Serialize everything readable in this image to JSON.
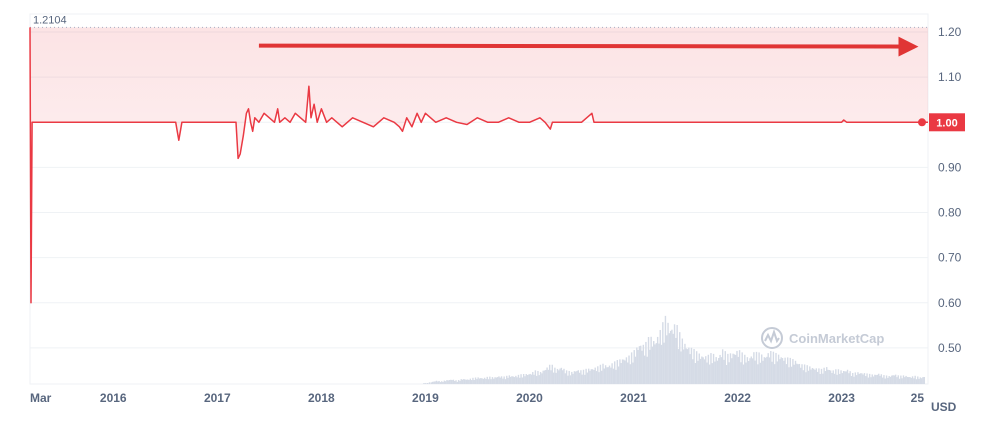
{
  "chart_data": {
    "type": "line",
    "y_ticks": [
      "1.20",
      "1.10",
      "1.00",
      "0.90",
      "0.80",
      "0.70",
      "0.60",
      "0.50"
    ],
    "ylim": [
      0.42,
      1.24
    ],
    "x_ticks": [
      "Mar",
      "2016",
      "2017",
      "2018",
      "2019",
      "2020",
      "2021",
      "2022",
      "2023",
      "25"
    ],
    "x_tick_years": [
      2015.2,
      2016.0,
      2017.0,
      2018.0,
      2019.0,
      2020.0,
      2021.0,
      2022.0,
      2023.0,
      2023.75
    ],
    "xlim": [
      2015.2,
      2023.83
    ],
    "unit": "USD",
    "max_label": "1.2104",
    "max_value": 1.2104,
    "current_label": "1.00",
    "current_value": 1.0,
    "watermark": "CoinMarketCap",
    "grid": true,
    "line_color": "#ea3943",
    "price_series": [
      [
        2015.2,
        1.2104
      ],
      [
        2015.21,
        0.6
      ],
      [
        2015.22,
        1.0
      ],
      [
        2015.5,
        1.0
      ],
      [
        2015.8,
        1.0
      ],
      [
        2016.0,
        1.0
      ],
      [
        2016.3,
        1.0
      ],
      [
        2016.6,
        1.0
      ],
      [
        2016.63,
        0.96
      ],
      [
        2016.66,
        1.0
      ],
      [
        2016.9,
        1.0
      ],
      [
        2017.1,
        1.0
      ],
      [
        2017.18,
        1.0
      ],
      [
        2017.2,
        0.92
      ],
      [
        2017.22,
        0.93
      ],
      [
        2017.25,
        0.97
      ],
      [
        2017.28,
        1.02
      ],
      [
        2017.3,
        1.03
      ],
      [
        2017.32,
        1.0
      ],
      [
        2017.34,
        0.98
      ],
      [
        2017.36,
        1.01
      ],
      [
        2017.4,
        1.0
      ],
      [
        2017.45,
        1.02
      ],
      [
        2017.5,
        1.01
      ],
      [
        2017.55,
        1.0
      ],
      [
        2017.58,
        1.03
      ],
      [
        2017.6,
        1.0
      ],
      [
        2017.65,
        1.01
      ],
      [
        2017.7,
        1.0
      ],
      [
        2017.75,
        1.02
      ],
      [
        2017.8,
        1.01
      ],
      [
        2017.85,
        1.0
      ],
      [
        2017.88,
        1.08
      ],
      [
        2017.9,
        1.01
      ],
      [
        2017.93,
        1.04
      ],
      [
        2017.96,
        1.0
      ],
      [
        2018.0,
        1.03
      ],
      [
        2018.05,
        1.0
      ],
      [
        2018.1,
        1.01
      ],
      [
        2018.2,
        0.99
      ],
      [
        2018.3,
        1.01
      ],
      [
        2018.4,
        1.0
      ],
      [
        2018.5,
        0.99
      ],
      [
        2018.6,
        1.01
      ],
      [
        2018.7,
        1.0
      ],
      [
        2018.75,
        0.99
      ],
      [
        2018.78,
        0.98
      ],
      [
        2018.82,
        1.01
      ],
      [
        2018.87,
        0.99
      ],
      [
        2018.92,
        1.02
      ],
      [
        2018.96,
        1.0
      ],
      [
        2019.0,
        1.02
      ],
      [
        2019.05,
        1.01
      ],
      [
        2019.1,
        1.0
      ],
      [
        2019.2,
        1.01
      ],
      [
        2019.3,
        1.0
      ],
      [
        2019.4,
        0.995
      ],
      [
        2019.5,
        1.01
      ],
      [
        2019.6,
        1.0
      ],
      [
        2019.7,
        1.0
      ],
      [
        2019.8,
        1.01
      ],
      [
        2019.9,
        1.0
      ],
      [
        2020.0,
        1.0
      ],
      [
        2020.1,
        1.01
      ],
      [
        2020.15,
        1.0
      ],
      [
        2020.2,
        0.985
      ],
      [
        2020.22,
        1.0
      ],
      [
        2020.3,
        1.0
      ],
      [
        2020.4,
        1.0
      ],
      [
        2020.5,
        1.0
      ],
      [
        2020.6,
        1.02
      ],
      [
        2020.62,
        1.0
      ],
      [
        2020.8,
        1.0
      ],
      [
        2021.0,
        1.0
      ],
      [
        2021.2,
        1.0
      ],
      [
        2021.5,
        1.0
      ],
      [
        2021.8,
        1.0
      ],
      [
        2022.0,
        1.0
      ],
      [
        2022.3,
        1.0
      ],
      [
        2022.6,
        1.0
      ],
      [
        2022.9,
        1.0
      ],
      [
        2023.0,
        1.0
      ],
      [
        2023.02,
        1.005
      ],
      [
        2023.05,
        1.0
      ],
      [
        2023.3,
        1.0
      ],
      [
        2023.6,
        1.0
      ],
      [
        2023.83,
        1.0
      ]
    ],
    "volume_series": [
      [
        2018.98,
        0.01
      ],
      [
        2019.05,
        0.03
      ],
      [
        2019.1,
        0.05
      ],
      [
        2019.15,
        0.04
      ],
      [
        2019.2,
        0.06
      ],
      [
        2019.25,
        0.07
      ],
      [
        2019.3,
        0.05
      ],
      [
        2019.35,
        0.08
      ],
      [
        2019.4,
        0.07
      ],
      [
        2019.45,
        0.09
      ],
      [
        2019.5,
        0.1
      ],
      [
        2019.55,
        0.09
      ],
      [
        2019.6,
        0.11
      ],
      [
        2019.65,
        0.1
      ],
      [
        2019.7,
        0.12
      ],
      [
        2019.75,
        0.11
      ],
      [
        2019.8,
        0.13
      ],
      [
        2019.85,
        0.12
      ],
      [
        2019.9,
        0.14
      ],
      [
        2019.95,
        0.15
      ],
      [
        2020.0,
        0.16
      ],
      [
        2020.05,
        0.2
      ],
      [
        2020.1,
        0.18
      ],
      [
        2020.15,
        0.24
      ],
      [
        2020.2,
        0.3
      ],
      [
        2020.25,
        0.22
      ],
      [
        2020.3,
        0.26
      ],
      [
        2020.35,
        0.2
      ],
      [
        2020.4,
        0.18
      ],
      [
        2020.45,
        0.22
      ],
      [
        2020.5,
        0.2
      ],
      [
        2020.55,
        0.23
      ],
      [
        2020.6,
        0.24
      ],
      [
        2020.65,
        0.26
      ],
      [
        2020.7,
        0.3
      ],
      [
        2020.75,
        0.28
      ],
      [
        2020.8,
        0.32
      ],
      [
        2020.85,
        0.36
      ],
      [
        2020.9,
        0.4
      ],
      [
        2020.95,
        0.42
      ],
      [
        2021.0,
        0.5
      ],
      [
        2021.05,
        0.62
      ],
      [
        2021.1,
        0.58
      ],
      [
        2021.15,
        0.72
      ],
      [
        2021.2,
        0.66
      ],
      [
        2021.25,
        0.8
      ],
      [
        2021.3,
        1.0
      ],
      [
        2021.35,
        0.86
      ],
      [
        2021.4,
        0.92
      ],
      [
        2021.45,
        0.7
      ],
      [
        2021.5,
        0.6
      ],
      [
        2021.55,
        0.54
      ],
      [
        2021.6,
        0.48
      ],
      [
        2021.65,
        0.44
      ],
      [
        2021.7,
        0.42
      ],
      [
        2021.75,
        0.46
      ],
      [
        2021.8,
        0.4
      ],
      [
        2021.85,
        0.52
      ],
      [
        2021.9,
        0.44
      ],
      [
        2021.95,
        0.48
      ],
      [
        2022.0,
        0.52
      ],
      [
        2022.05,
        0.44
      ],
      [
        2022.1,
        0.4
      ],
      [
        2022.15,
        0.48
      ],
      [
        2022.2,
        0.46
      ],
      [
        2022.25,
        0.42
      ],
      [
        2022.3,
        0.5
      ],
      [
        2022.35,
        0.46
      ],
      [
        2022.4,
        0.44
      ],
      [
        2022.45,
        0.4
      ],
      [
        2022.5,
        0.38
      ],
      [
        2022.55,
        0.36
      ],
      [
        2022.6,
        0.3
      ],
      [
        2022.65,
        0.28
      ],
      [
        2022.7,
        0.26
      ],
      [
        2022.75,
        0.24
      ],
      [
        2022.8,
        0.22
      ],
      [
        2022.85,
        0.26
      ],
      [
        2022.9,
        0.2
      ],
      [
        2022.95,
        0.22
      ],
      [
        2023.0,
        0.2
      ],
      [
        2023.05,
        0.22
      ],
      [
        2023.1,
        0.16
      ],
      [
        2023.15,
        0.18
      ],
      [
        2023.2,
        0.17
      ],
      [
        2023.25,
        0.15
      ],
      [
        2023.3,
        0.14
      ],
      [
        2023.35,
        0.16
      ],
      [
        2023.4,
        0.13
      ],
      [
        2023.45,
        0.12
      ],
      [
        2023.5,
        0.15
      ],
      [
        2023.55,
        0.12
      ],
      [
        2023.6,
        0.13
      ],
      [
        2023.65,
        0.11
      ],
      [
        2023.7,
        0.12
      ],
      [
        2023.75,
        0.1
      ],
      [
        2023.8,
        0.12
      ]
    ],
    "annotation": {
      "type": "arrow",
      "from_year": 2017.4,
      "to_year": 2023.7,
      "y_value": 1.17,
      "color": "#e03535"
    }
  }
}
